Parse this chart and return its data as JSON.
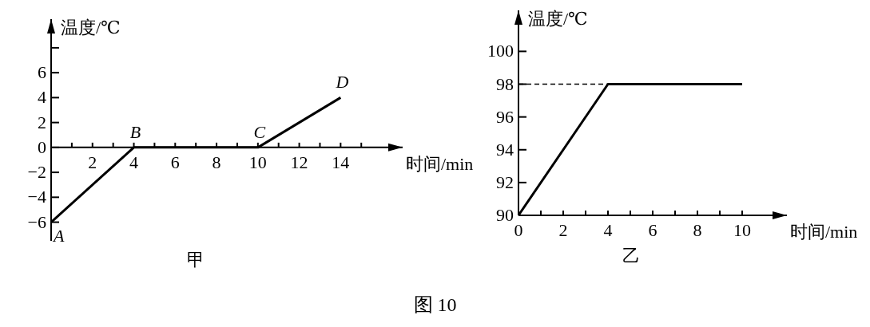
{
  "chart_data": [
    {
      "type": "line",
      "title": "甲",
      "xlabel": "时间/min",
      "ylabel": "温度/℃",
      "xlim": [
        0,
        17
      ],
      "ylim": [
        -7.5,
        10.3
      ],
      "xticks": [
        {
          "value": 1,
          "label": null
        },
        2,
        {
          "value": 3,
          "label": null
        },
        4,
        {
          "value": 5,
          "label": null
        },
        6,
        {
          "value": 7,
          "label": null
        },
        8,
        {
          "value": 9,
          "label": null
        },
        10,
        {
          "value": 11,
          "label": null
        },
        12,
        {
          "value": 13,
          "label": null
        },
        14,
        {
          "value": 15,
          "label": null
        }
      ],
      "yticks": [
        -6,
        -4,
        -2,
        0,
        2,
        4,
        6,
        {
          "value": 8,
          "label": null
        }
      ],
      "series": [
        {
          "color": "#000000",
          "x": [
            0,
            4,
            10,
            14
          ],
          "values": [
            -6,
            0,
            0,
            4
          ]
        }
      ],
      "annotations": [
        {
          "text": "A",
          "x": 0,
          "y": -6
        },
        {
          "text": "B",
          "x": 4,
          "y": 0
        },
        {
          "text": "C",
          "x": 10,
          "y": 0
        },
        {
          "text": "D",
          "x": 14,
          "y": 4
        }
      ]
    },
    {
      "type": "line",
      "title": "乙",
      "xlabel": "时间/min",
      "ylabel": "温度/℃",
      "xlim": [
        0,
        12
      ],
      "ylim": [
        90,
        102.5
      ],
      "xticks": [
        0,
        {
          "value": 1,
          "label": null
        },
        2,
        {
          "value": 3,
          "label": null
        },
        4,
        {
          "value": 5,
          "label": null
        },
        6,
        {
          "value": 7,
          "label": null
        },
        8,
        {
          "value": 9,
          "label": null
        },
        10
      ],
      "yticks": [
        90,
        92,
        94,
        96,
        98,
        100
      ],
      "series": [
        {
          "color": "#000000",
          "x": [
            0,
            4,
            10
          ],
          "values": [
            90,
            98,
            98
          ]
        }
      ],
      "ref_lines": [
        {
          "axis": "y",
          "value": 98,
          "line_style": "dashed"
        }
      ],
      "annotations": [
        "图 10"
      ]
    }
  ]
}
